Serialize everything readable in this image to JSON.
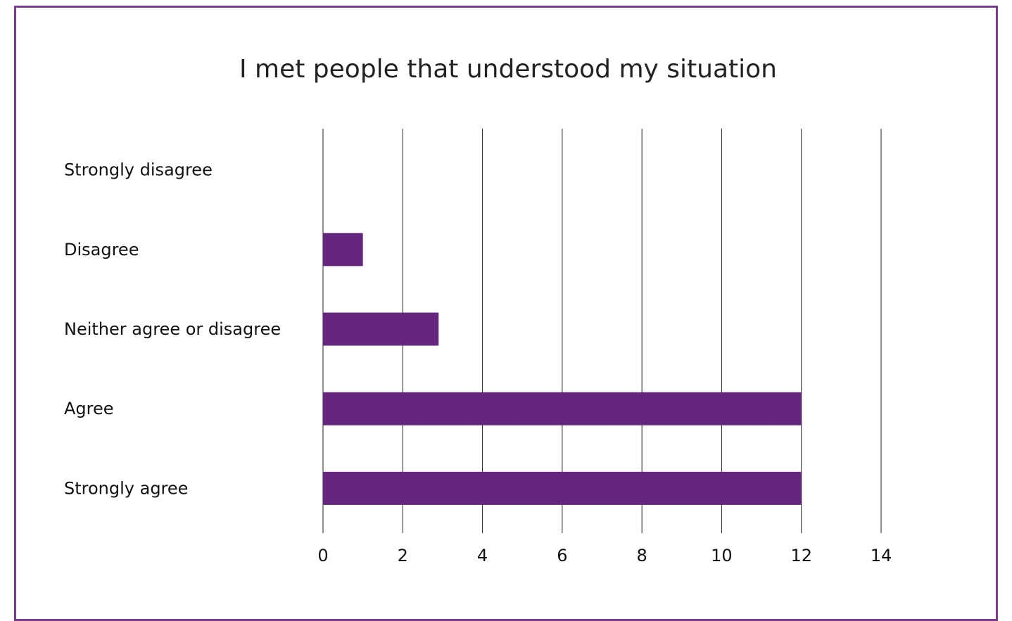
{
  "chart_data": {
    "type": "bar",
    "orientation": "horizontal",
    "title": "I met people that understood my situation",
    "categories": [
      "Strongly disagree",
      "Disagree",
      "Neither agree or disagree",
      "Agree",
      "Strongly agree"
    ],
    "values": [
      0,
      1,
      2.9,
      12,
      12
    ],
    "xlim": [
      0,
      14
    ],
    "xticks": [
      "0",
      "2",
      "4",
      "6",
      "8",
      "10",
      "12",
      "14"
    ],
    "xlabel": "",
    "ylabel": "",
    "grid": true,
    "legend": "none",
    "bar_color": "#65267d",
    "frame_color": "#7a3c8c"
  }
}
